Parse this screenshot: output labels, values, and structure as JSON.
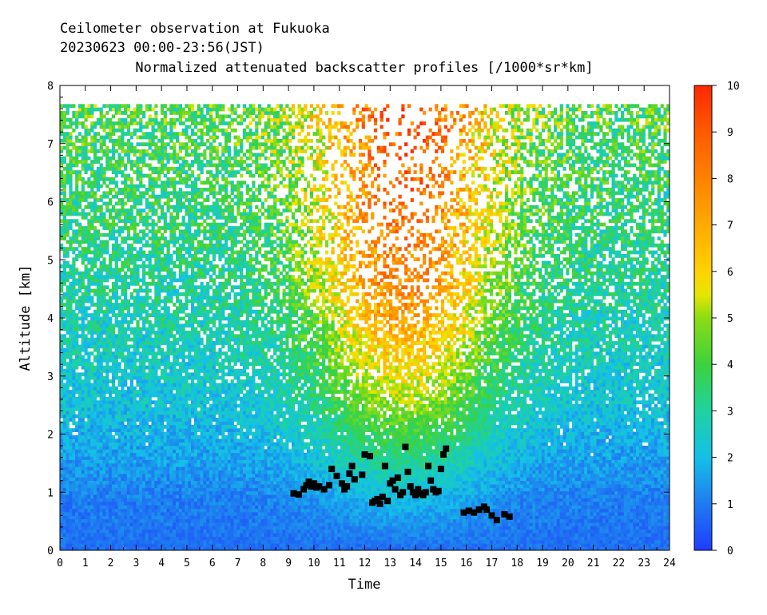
{
  "chart_data": {
    "type": "heatmap",
    "title_lines": [
      "Ceilometer observation at Fukuoka",
      "20230623  00:00-23:56(JST)",
      "Normalized attenuated backscatter profiles [/1000*sr*km]"
    ],
    "xlabel": "Time",
    "ylabel": "Altitude [km]",
    "xlim": [
      0,
      24
    ],
    "ylim": [
      0,
      8
    ],
    "x_ticks": [
      "0",
      "1",
      "2",
      "3",
      "4",
      "5",
      "6",
      "7",
      "8",
      "9",
      "10",
      "11",
      "12",
      "13",
      "14",
      "15",
      "16",
      "17",
      "18",
      "19",
      "20",
      "21",
      "22",
      "23",
      "24"
    ],
    "y_ticks": [
      "0",
      "1",
      "2",
      "3",
      "4",
      "5",
      "6",
      "7",
      "8"
    ],
    "data_top_altitude_km": 7.65,
    "colorbar": {
      "range": [
        0,
        10
      ],
      "ticks": [
        "0",
        "1",
        "2",
        "3",
        "4",
        "5",
        "6",
        "7",
        "8",
        "9",
        "10"
      ],
      "stops": [
        {
          "v": 0,
          "color": "#1f3cff"
        },
        {
          "v": 1,
          "color": "#1f7cf0"
        },
        {
          "v": 2,
          "color": "#14c0e8"
        },
        {
          "v": 3,
          "color": "#1ed2a0"
        },
        {
          "v": 4,
          "color": "#3cd23c"
        },
        {
          "v": 5,
          "color": "#8cdc14"
        },
        {
          "v": 5.5,
          "color": "#e6e600"
        },
        {
          "v": 6,
          "color": "#ffd200"
        },
        {
          "v": 7,
          "color": "#ffaa00"
        },
        {
          "v": 8,
          "color": "#ff8200"
        },
        {
          "v": 9,
          "color": "#ff5a00"
        },
        {
          "v": 10,
          "color": "#ff2800"
        }
      ]
    },
    "field_profile": [
      {
        "z": 0.0,
        "v": 0.8
      },
      {
        "z": 0.8,
        "v": 1.0
      },
      {
        "z": 1.5,
        "v": 1.5
      },
      {
        "z": 2.5,
        "v": 2.2
      },
      {
        "z": 4.0,
        "v": 2.8
      },
      {
        "z": 6.0,
        "v": 3.5
      },
      {
        "z": 7.65,
        "v": 4.0
      }
    ],
    "cloud_base_markers": {
      "marker_color": "#000000",
      "points": [
        [
          9.2,
          0.98
        ],
        [
          9.4,
          0.96
        ],
        [
          9.6,
          1.05
        ],
        [
          9.7,
          1.12
        ],
        [
          9.8,
          1.18
        ],
        [
          9.9,
          1.1
        ],
        [
          10.0,
          1.15
        ],
        [
          10.1,
          1.08
        ],
        [
          10.2,
          1.1
        ],
        [
          10.4,
          1.05
        ],
        [
          10.6,
          1.12
        ],
        [
          10.7,
          1.4
        ],
        [
          10.9,
          1.28
        ],
        [
          11.1,
          1.15
        ],
        [
          11.2,
          1.05
        ],
        [
          11.3,
          1.1
        ],
        [
          11.4,
          1.32
        ],
        [
          11.5,
          1.45
        ],
        [
          11.6,
          1.22
        ],
        [
          11.9,
          1.3
        ],
        [
          12.0,
          1.65
        ],
        [
          12.2,
          1.62
        ],
        [
          12.3,
          0.82
        ],
        [
          12.4,
          0.85
        ],
        [
          12.5,
          0.88
        ],
        [
          12.6,
          0.8
        ],
        [
          12.7,
          0.92
        ],
        [
          12.8,
          1.45
        ],
        [
          12.9,
          0.85
        ],
        [
          13.0,
          1.15
        ],
        [
          13.1,
          1.2
        ],
        [
          13.2,
          1.05
        ],
        [
          13.3,
          1.25
        ],
        [
          13.4,
          0.95
        ],
        [
          13.5,
          1.0
        ],
        [
          13.6,
          1.78
        ],
        [
          13.7,
          1.35
        ],
        [
          13.8,
          1.1
        ],
        [
          13.9,
          1.0
        ],
        [
          14.0,
          0.95
        ],
        [
          14.1,
          1.05
        ],
        [
          14.2,
          0.98
        ],
        [
          14.3,
          0.95
        ],
        [
          14.4,
          1.0
        ],
        [
          14.5,
          1.45
        ],
        [
          14.6,
          1.2
        ],
        [
          14.7,
          1.05
        ],
        [
          14.8,
          1.0
        ],
        [
          14.9,
          1.02
        ],
        [
          15.0,
          1.4
        ],
        [
          15.1,
          1.65
        ],
        [
          15.2,
          1.75
        ],
        [
          15.9,
          0.65
        ],
        [
          16.1,
          0.68
        ],
        [
          16.3,
          0.65
        ],
        [
          16.5,
          0.7
        ],
        [
          16.7,
          0.75
        ],
        [
          16.8,
          0.7
        ],
        [
          17.0,
          0.6
        ],
        [
          17.2,
          0.52
        ],
        [
          17.5,
          0.62
        ],
        [
          17.7,
          0.58
        ]
      ]
    }
  }
}
